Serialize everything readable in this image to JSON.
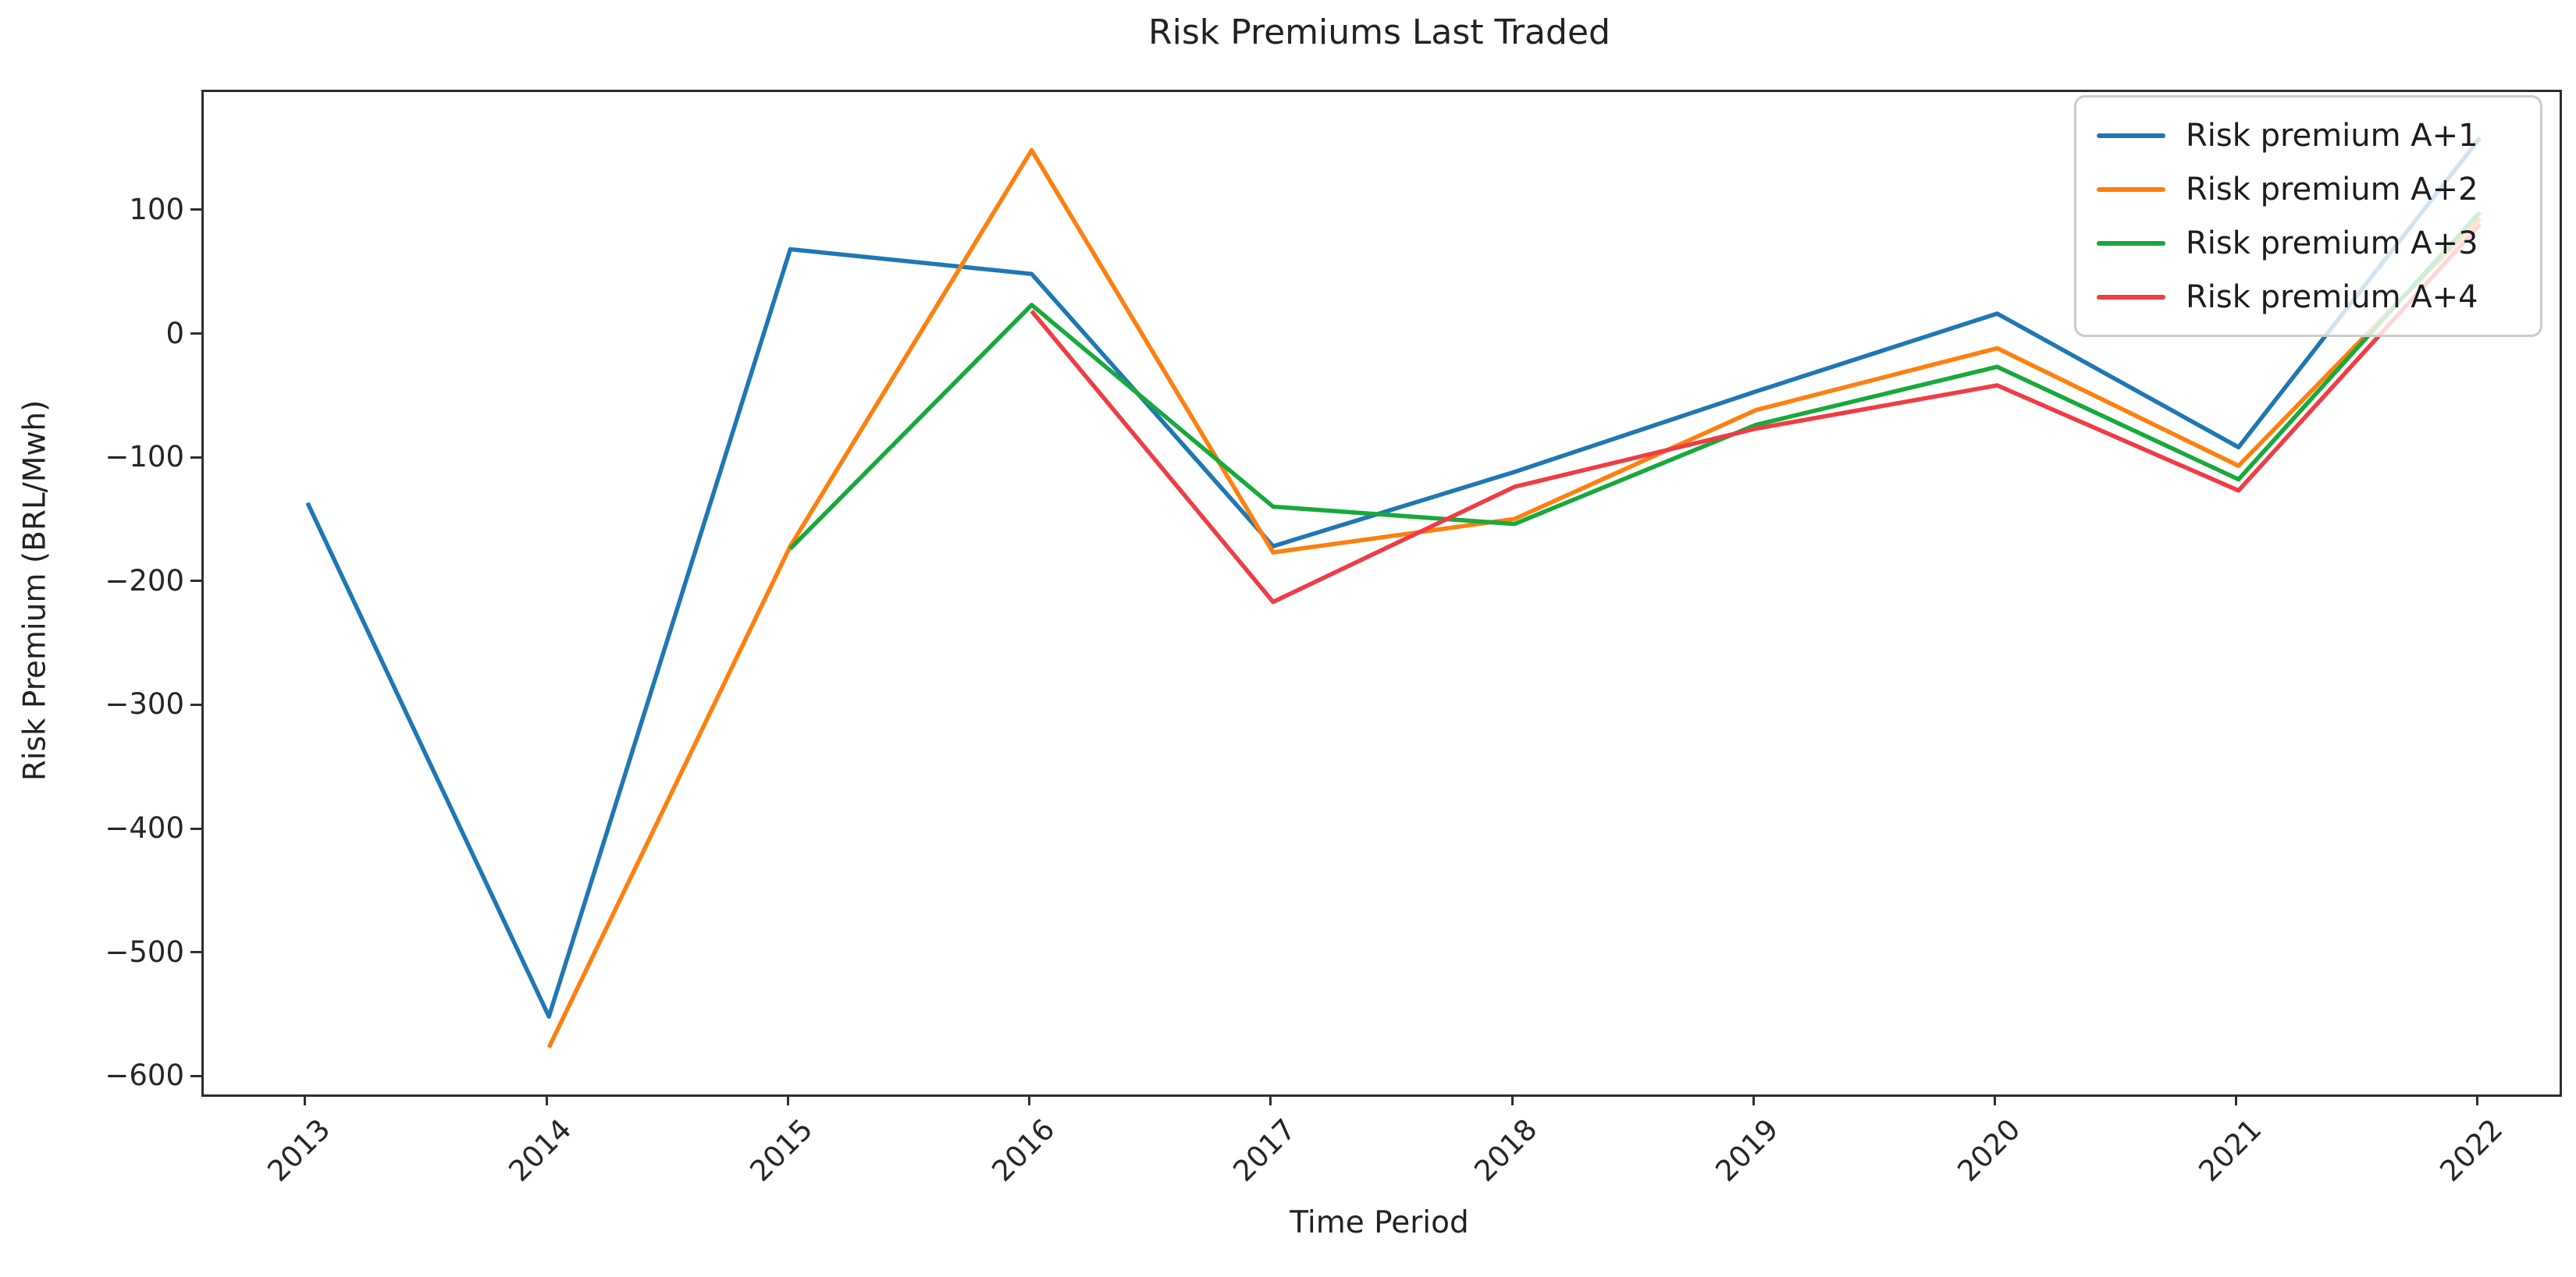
{
  "title": "Risk Premiums Last Traded",
  "axes": {
    "xlabel": "Time Period",
    "ylabel": "Risk Premium (BRL/Mwh)",
    "x_tick_labels": [
      "2013",
      "2014",
      "2015",
      "2016",
      "2017",
      "2018",
      "2019",
      "2020",
      "2021",
      "2022"
    ],
    "y_tick_labels": [
      "100",
      "0",
      "−100",
      "−200",
      "−300",
      "−400",
      "−500",
      "−600"
    ]
  },
  "legend": {
    "entries": [
      {
        "label": "Risk premium A+1",
        "color": "#1f77b4"
      },
      {
        "label": "Risk premium A+2",
        "color": "#ff7f0e"
      },
      {
        "label": "Risk premium A+3",
        "color": "#17a93b"
      },
      {
        "label": "Risk premium A+4",
        "color": "#f03c44"
      }
    ]
  },
  "chart_data": {
    "type": "line",
    "title": "Risk Premiums Last Traded",
    "xlabel": "Time Period",
    "ylabel": "Risk Premium (BRL/Mwh)",
    "x": [
      2013,
      2014,
      2015,
      2016,
      2017,
      2018,
      2019,
      2020,
      2021,
      2022
    ],
    "series": [
      {
        "name": "Risk premium A+1",
        "color": "#1f77b4",
        "values": [
          -135,
          -550,
          70,
          50,
          -170,
          -110,
          -45,
          18,
          -90,
          160
        ]
      },
      {
        "name": "Risk premium A+2",
        "color": "#ff7f0e",
        "values": [
          null,
          -575,
          -170,
          150,
          -175,
          -148,
          -60,
          -10,
          -105,
          95
        ]
      },
      {
        "name": "Risk premium A+3",
        "color": "#17a93b",
        "values": [
          null,
          null,
          -172,
          25,
          -138,
          -152,
          -72,
          -25,
          -116,
          100
        ]
      },
      {
        "name": "Risk premium A+4",
        "color": "#f03c44",
        "values": [
          null,
          null,
          null,
          20,
          -215,
          -122,
          -75,
          -40,
          -125,
          90
        ]
      }
    ],
    "xlim": [
      2012.57,
      2022.33
    ],
    "ylim": [
      -613,
      197
    ],
    "yticks": [
      100,
      0,
      -100,
      -200,
      -300,
      -400,
      -500,
      -600
    ],
    "grid": false,
    "legend_position": "upper right",
    "line_width": 5.5,
    "x_tick_rotation_deg": 45
  }
}
